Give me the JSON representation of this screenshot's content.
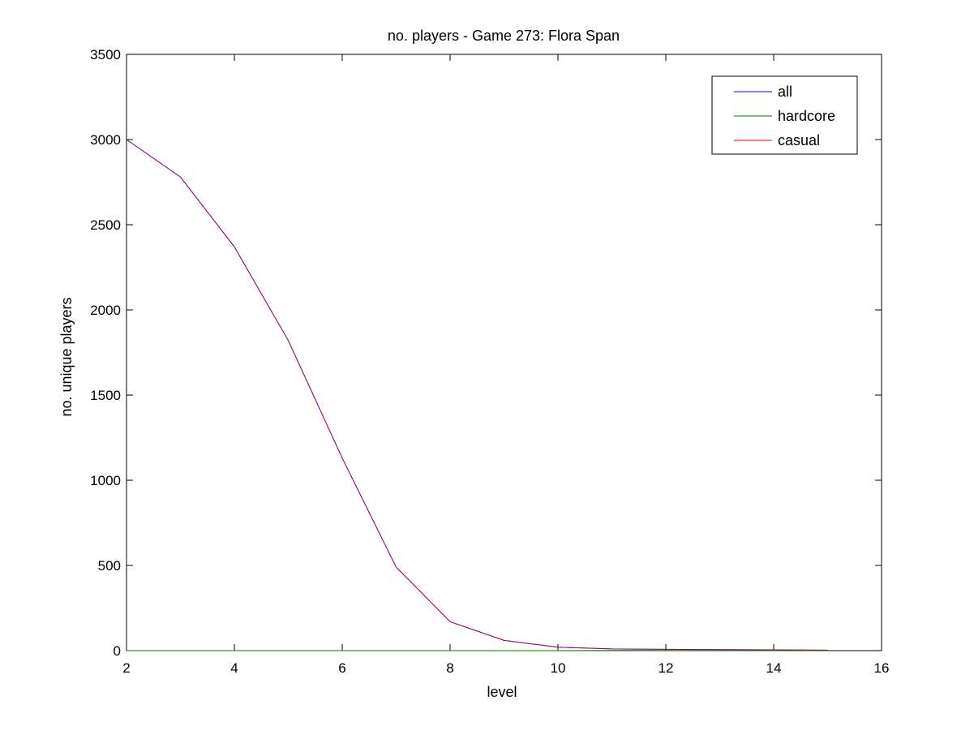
{
  "chart_data": {
    "type": "line",
    "title": "no. players - Game 273: Flora Span",
    "xlabel": "level",
    "ylabel": "no. unique players",
    "xlim": [
      2,
      16
    ],
    "ylim": [
      0,
      3500
    ],
    "xticks": [
      2,
      4,
      6,
      8,
      10,
      12,
      14,
      16
    ],
    "yticks": [
      0,
      500,
      1000,
      1500,
      2000,
      2500,
      3000,
      3500
    ],
    "grid": false,
    "legend_position": "top-right",
    "series": [
      {
        "name": "all",
        "color": "#0000ff",
        "x": [
          2,
          3,
          4,
          5,
          6,
          7,
          8,
          9,
          10,
          11,
          12,
          13,
          14,
          15
        ],
        "y": [
          3000,
          2780,
          2370,
          1820,
          1130,
          490,
          170,
          60,
          20,
          10,
          8,
          6,
          5,
          3
        ]
      },
      {
        "name": "hardcore",
        "color": "#008000",
        "x": [
          2,
          3,
          4,
          5,
          6,
          7,
          8,
          9,
          10,
          11,
          12,
          13,
          14,
          15
        ],
        "y": [
          0,
          0,
          0,
          0,
          0,
          0,
          0,
          0,
          0,
          1,
          1,
          1,
          1,
          1
        ]
      },
      {
        "name": "casual",
        "color": "#ff0000",
        "x": [
          2,
          3,
          4,
          5,
          6,
          7,
          8,
          9,
          10,
          11,
          12,
          13,
          14,
          15
        ],
        "y": [
          3000,
          2780,
          2370,
          1820,
          1130,
          490,
          170,
          60,
          20,
          10,
          8,
          6,
          5,
          3
        ]
      }
    ]
  }
}
